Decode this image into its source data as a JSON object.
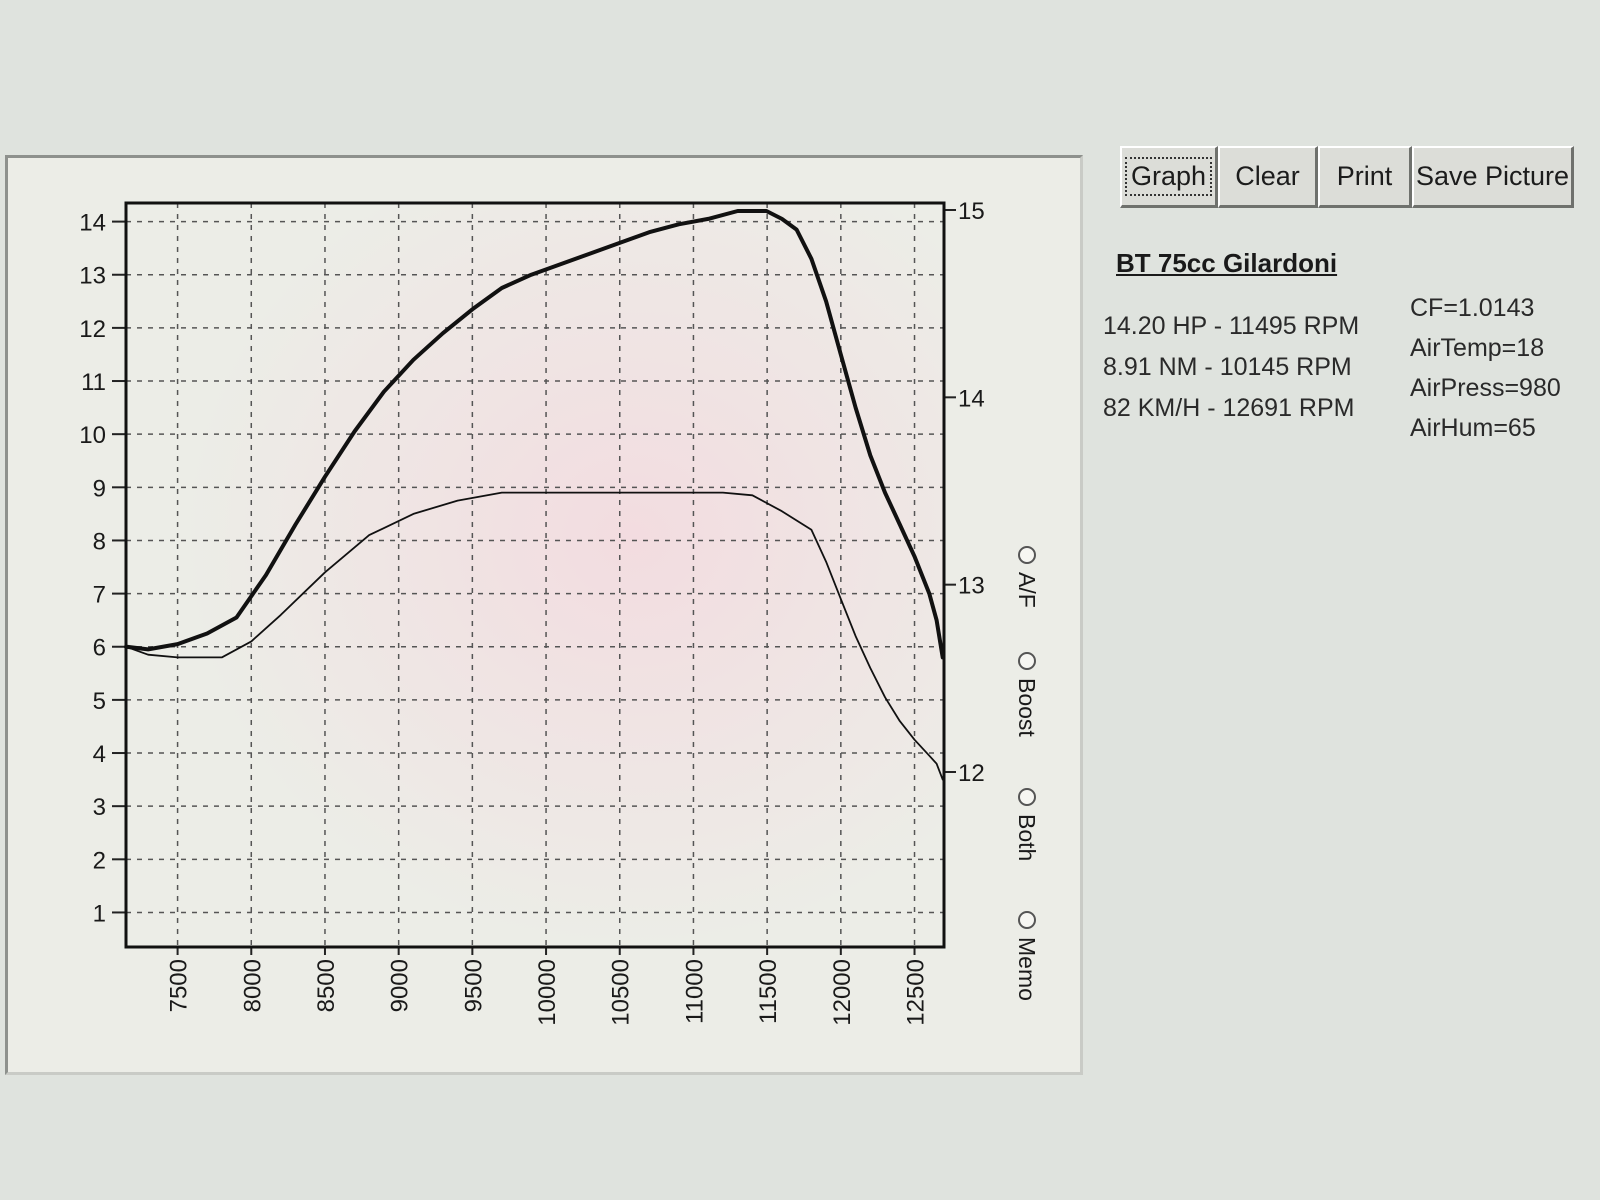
{
  "toolbar": {
    "buttons": [
      {
        "label": "Graph",
        "focused": true
      },
      {
        "label": "Clear"
      },
      {
        "label": "Print"
      },
      {
        "label": "Save Picture"
      }
    ]
  },
  "run": {
    "title": "BT 75cc Gilardoni",
    "stats": [
      "14.20 HP - 11495 RPM",
      "8.91 NM - 10145 RPM",
      "82 KM/H - 12691 RPM"
    ],
    "conditions": [
      "CF=1.0143",
      "AirTemp=18",
      "AirPress=980",
      "AirHum=65"
    ]
  },
  "modes": [
    "A/F",
    "Boost",
    "Both",
    "Memo"
  ],
  "chart_data": {
    "type": "line",
    "x_ticks": [
      7500,
      8000,
      8500,
      9000,
      9500,
      10000,
      10500,
      11000,
      11500,
      12000,
      12500
    ],
    "xlim": [
      7150,
      12700
    ],
    "y_left_ticks": [
      1,
      2,
      3,
      4,
      5,
      6,
      7,
      8,
      9,
      10,
      11,
      12,
      13,
      14
    ],
    "ylim_left": [
      0.35,
      14.35
    ],
    "y_right_ticks": [
      12,
      13,
      14,
      15
    ],
    "grid": true,
    "series": [
      {
        "style": "bold",
        "x": [
          7150,
          7300,
          7500,
          7700,
          7900,
          8100,
          8300,
          8500,
          8700,
          8900,
          9100,
          9300,
          9500,
          9700,
          9900,
          10100,
          10300,
          10500,
          10700,
          10900,
          11100,
          11300,
          11400,
          11495,
          11600,
          11700,
          11800,
          11900,
          12000,
          12100,
          12200,
          12300,
          12400,
          12500,
          12600,
          12650,
          12691
        ],
        "y": [
          6.0,
          5.95,
          6.05,
          6.25,
          6.55,
          7.35,
          8.3,
          9.2,
          10.05,
          10.8,
          11.4,
          11.9,
          12.35,
          12.75,
          13.0,
          13.2,
          13.4,
          13.6,
          13.8,
          13.95,
          14.05,
          14.2,
          14.2,
          14.2,
          14.05,
          13.85,
          13.3,
          12.5,
          11.5,
          10.5,
          9.6,
          8.9,
          8.3,
          7.7,
          7.0,
          6.5,
          5.8
        ]
      },
      {
        "style": "thin",
        "x": [
          7150,
          7300,
          7500,
          7700,
          7800,
          8000,
          8200,
          8500,
          8800,
          9100,
          9400,
          9700,
          10000,
          10300,
          10600,
          10900,
          11200,
          11400,
          11600,
          11800,
          11900,
          12000,
          12100,
          12200,
          12300,
          12400,
          12500,
          12600,
          12650,
          12691
        ],
        "y": [
          6.0,
          5.85,
          5.8,
          5.8,
          5.8,
          6.1,
          6.6,
          7.4,
          8.1,
          8.5,
          8.75,
          8.9,
          8.9,
          8.9,
          8.9,
          8.9,
          8.9,
          8.85,
          8.55,
          8.2,
          7.6,
          6.9,
          6.2,
          5.6,
          5.05,
          4.6,
          4.25,
          3.95,
          3.8,
          3.5
        ]
      }
    ]
  }
}
